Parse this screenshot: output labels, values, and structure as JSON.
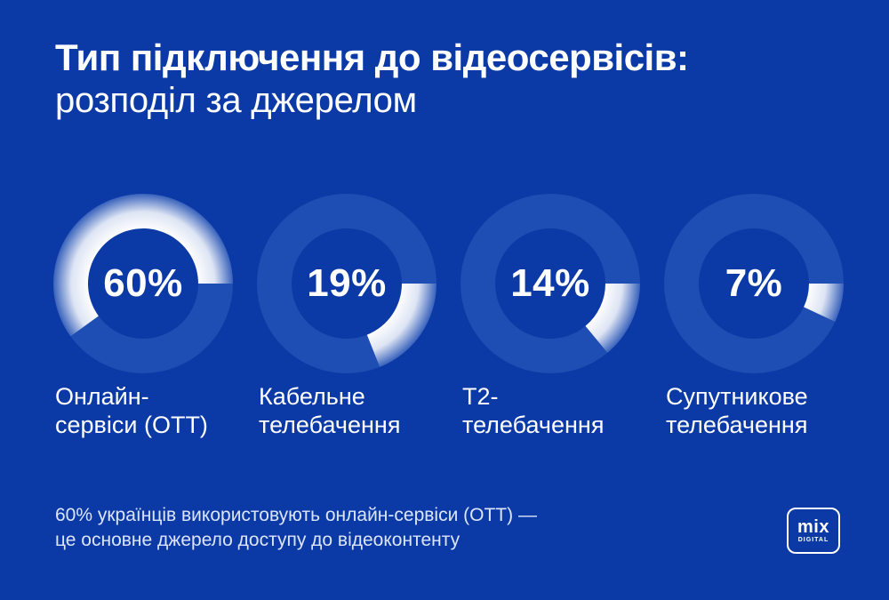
{
  "header": {
    "title": "Тип підключення до відеосервісів:",
    "subtitle": "розподіл за джерелом"
  },
  "colors": {
    "background": "#0b3aa6",
    "track": "#1e4db3",
    "highlight": "#ffffff",
    "text": "#ffffff"
  },
  "chart_data": {
    "type": "pie",
    "title": "Тип підключення до відеосервісів: розподіл за джерелом",
    "unit": "%",
    "categories": [
      "Онлайн-сервіси (OTT)",
      "Кабельне телебачення",
      "T2-телебачення",
      "Супутникове телебачення"
    ],
    "values": [
      60,
      19,
      14,
      7
    ],
    "value_labels": [
      "60%",
      "19%",
      "14%",
      "7%"
    ],
    "label_lines": [
      "Онлайн-\nсервіси (OTT)",
      "Кабельне\nтелебачення",
      "T2-\nтелебачення",
      "Супутникове\nтелебачення"
    ]
  },
  "footnote": "60% українців використовують онлайн-сервіси (OTT) —\nце основне джерело доступу до відеоконтенту",
  "logo": {
    "main": "mix",
    "sub": "DIGITAL"
  }
}
